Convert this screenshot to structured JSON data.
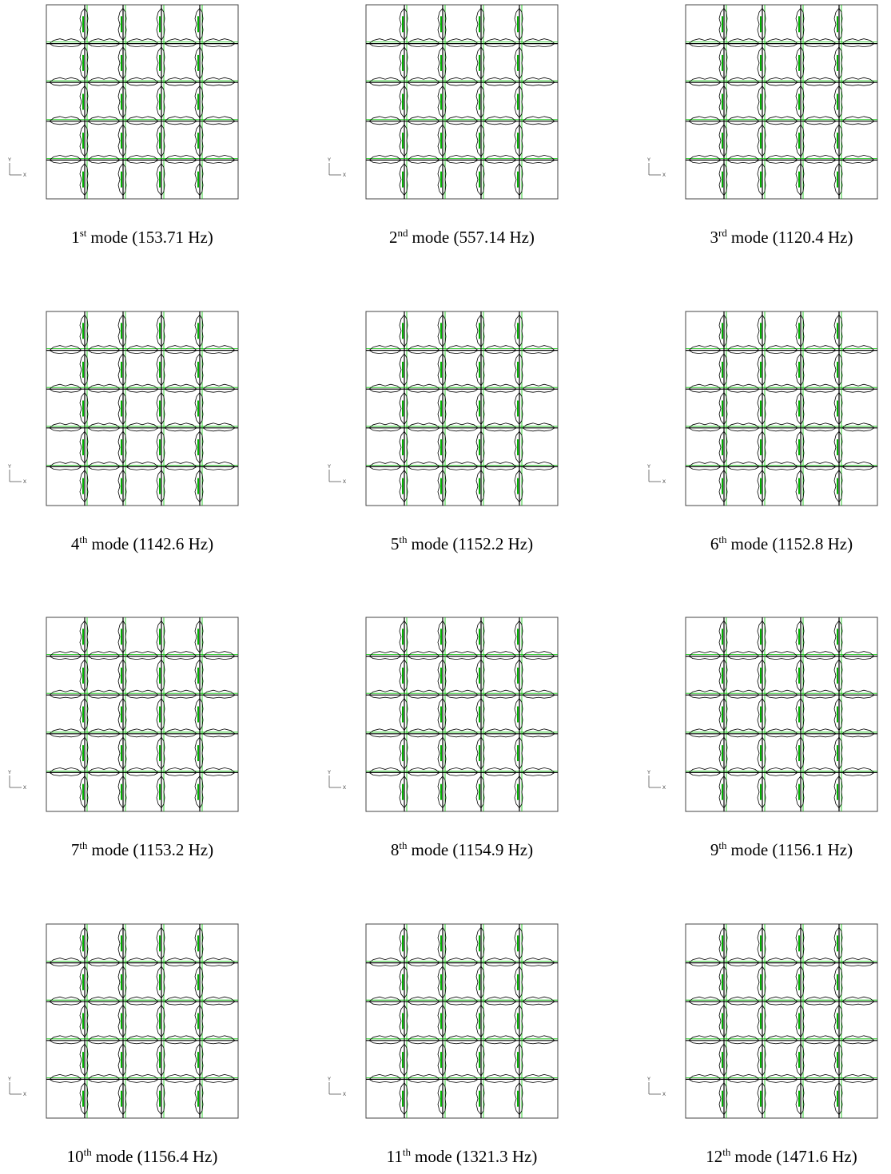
{
  "panels": [
    {
      "ordinal": "1",
      "suffix": "st",
      "text": "mode (153.71 Hz)"
    },
    {
      "ordinal": "2",
      "suffix": "nd",
      "text": "mode (557.14 Hz)"
    },
    {
      "ordinal": "3",
      "suffix": "rd",
      "text": "mode (1120.4 Hz)"
    },
    {
      "ordinal": "4",
      "suffix": "th",
      "text": "mode (1142.6 Hz)"
    },
    {
      "ordinal": "5",
      "suffix": "th",
      "text": "mode (1152.2 Hz)"
    },
    {
      "ordinal": "6",
      "suffix": "th",
      "text": "mode (1152.8 Hz)"
    },
    {
      "ordinal": "7",
      "suffix": "th",
      "text": "mode (1153.2 Hz)"
    },
    {
      "ordinal": "8",
      "suffix": "th",
      "text": "mode (1154.9 Hz)"
    },
    {
      "ordinal": "9",
      "suffix": "th",
      "text": "mode (1156.1 Hz)"
    },
    {
      "ordinal": "10",
      "suffix": "th",
      "text": "mode (1156.4 Hz)"
    },
    {
      "ordinal": "11",
      "suffix": "th",
      "text": "mode (1321.3 Hz)"
    },
    {
      "ordinal": "12",
      "suffix": "th",
      "text": "mode (1471.6 Hz)"
    }
  ],
  "axis": {
    "y": "Y",
    "x": "X"
  }
}
